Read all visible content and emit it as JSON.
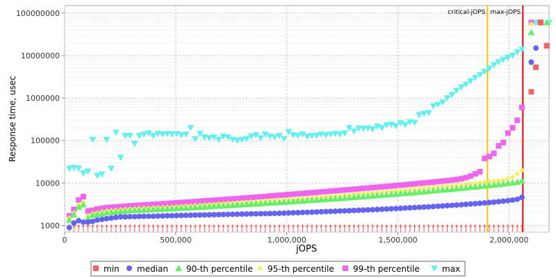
{
  "chart_data": {
    "type": "scatter",
    "title": "",
    "xlabel": "jOPS",
    "ylabel": "Response time, usec",
    "xlim": [
      0,
      2180000
    ],
    "ylim": [
      700,
      150000000
    ],
    "yscale": "log",
    "grid": true,
    "legend_position": "bottom",
    "x_ticks": [
      0,
      500000,
      1000000,
      1500000,
      2000000
    ],
    "x_tick_labels": [
      "0",
      "500,000",
      "1,000,000",
      "1,500,000",
      "2,000,000"
    ],
    "y_ticks": [
      1000,
      10000,
      100000,
      1000000,
      10000000,
      100000000
    ],
    "y_tick_labels": [
      "1000",
      "10000",
      "100000",
      "1000000",
      "10000000",
      "100000000"
    ],
    "x": [
      21000,
      42000,
      63000,
      84000,
      105000,
      126000,
      147000,
      168000,
      189000,
      210000,
      231000,
      252000,
      273000,
      294000,
      315000,
      336000,
      357000,
      378000,
      399000,
      420000,
      441000,
      462000,
      483000,
      504000,
      525000,
      546000,
      567000,
      588000,
      609000,
      630000,
      651000,
      672000,
      693000,
      714000,
      735000,
      756000,
      777000,
      798000,
      819000,
      840000,
      861000,
      882000,
      903000,
      924000,
      945000,
      966000,
      987000,
      1008000,
      1029000,
      1050000,
      1071000,
      1092000,
      1113000,
      1134000,
      1155000,
      1176000,
      1197000,
      1218000,
      1239000,
      1260000,
      1281000,
      1302000,
      1323000,
      1344000,
      1365000,
      1386000,
      1407000,
      1428000,
      1449000,
      1470000,
      1491000,
      1512000,
      1533000,
      1554000,
      1575000,
      1596000,
      1617000,
      1638000,
      1659000,
      1680000,
      1701000,
      1722000,
      1743000,
      1764000,
      1785000,
      1806000,
      1827000,
      1848000,
      1869000,
      1890000,
      1911000,
      1932000,
      1953000,
      1974000,
      1995000,
      2016000,
      2037000,
      2058000
    ],
    "min_level": 1000,
    "series": [
      {
        "name": "min",
        "color": "#f06464",
        "marker": "square",
        "points": [
          [
            2100000,
            1400000
          ],
          [
            2121000,
            5300000
          ],
          [
            2142000,
            60000000
          ],
          [
            2170000,
            17000000
          ]
        ]
      },
      {
        "name": "median",
        "color": "#6464f0",
        "marker": "circle",
        "values": [
          900,
          1150,
          1300,
          1200,
          1200,
          1250,
          1350,
          1400,
          1450,
          1500,
          1550,
          1600,
          1600,
          1620,
          1620,
          1640,
          1650,
          1650,
          1660,
          1670,
          1680,
          1700,
          1700,
          1720,
          1730,
          1740,
          1750,
          1760,
          1770,
          1780,
          1790,
          1800,
          1810,
          1820,
          1830,
          1840,
          1850,
          1860,
          1870,
          1880,
          1890,
          1900,
          1910,
          1920,
          1930,
          1940,
          1960,
          1980,
          2000,
          2010,
          2030,
          2050,
          2070,
          2090,
          2110,
          2130,
          2150,
          2170,
          2200,
          2220,
          2240,
          2260,
          2290,
          2310,
          2340,
          2360,
          2390,
          2420,
          2450,
          2480,
          2510,
          2540,
          2580,
          2610,
          2650,
          2680,
          2720,
          2760,
          2800,
          2850,
          2890,
          2940,
          2990,
          3040,
          3090,
          3150,
          3210,
          3270,
          3340,
          3410,
          3480,
          3560,
          3650,
          3750,
          3860,
          3980,
          4150,
          4600
        ],
        "extra_points": [
          [
            2100000,
            7000000
          ],
          [
            2121000,
            15000000
          ],
          [
            2142000,
            60000000
          ],
          [
            2170000,
            17000000
          ]
        ]
      },
      {
        "name": "90-th percentile",
        "color": "#64f064",
        "marker": "triangle",
        "values": [
          1350,
          1800,
          2700,
          3100,
          1500,
          1750,
          1850,
          1900,
          2000,
          2050,
          2100,
          2150,
          2200,
          2250,
          2280,
          2300,
          2330,
          2360,
          2390,
          2420,
          2450,
          2480,
          2510,
          2540,
          2570,
          2600,
          2640,
          2680,
          2720,
          2760,
          2800,
          2840,
          2880,
          2920,
          2960,
          3000,
          3050,
          3100,
          3150,
          3200,
          3250,
          3300,
          3350,
          3400,
          3450,
          3500,
          3560,
          3620,
          3680,
          3740,
          3800,
          3860,
          3930,
          4000,
          4070,
          4140,
          4210,
          4290,
          4370,
          4450,
          4530,
          4620,
          4710,
          4800,
          4890,
          4990,
          5090,
          5190,
          5300,
          5410,
          5520,
          5640,
          5760,
          5880,
          6010,
          6140,
          6280,
          6420,
          6570,
          6720,
          6880,
          7040,
          7210,
          7380,
          7560,
          7750,
          7940,
          8140,
          8350,
          8570,
          8800,
          9050,
          9300,
          9600,
          9900,
          10200,
          10600,
          11300
        ],
        "extra_points": [
          [
            2100000,
            35000000
          ],
          [
            2142000,
            60000000
          ],
          [
            2170000,
            60000000
          ]
        ]
      },
      {
        "name": "95-th percentile",
        "color": "#f0f064",
        "marker": "diamond",
        "values": [
          1500,
          2000,
          3000,
          3500,
          1700,
          1900,
          2000,
          2100,
          2200,
          2250,
          2300,
          2350,
          2400,
          2450,
          2500,
          2530,
          2560,
          2590,
          2620,
          2650,
          2680,
          2710,
          2750,
          2790,
          2830,
          2870,
          2910,
          2950,
          3000,
          3050,
          3100,
          3150,
          3200,
          3250,
          3300,
          3350,
          3410,
          3470,
          3530,
          3590,
          3650,
          3710,
          3770,
          3840,
          3910,
          3980,
          4050,
          4120,
          4190,
          4270,
          4350,
          4430,
          4510,
          4600,
          4690,
          4780,
          4870,
          4970,
          5070,
          5170,
          5280,
          5390,
          5500,
          5620,
          5740,
          5860,
          5990,
          6120,
          6250,
          6390,
          6530,
          6680,
          6830,
          6990,
          7150,
          7320,
          7490,
          7670,
          7860,
          8050,
          8250,
          8450,
          8660,
          8880,
          9110,
          9350,
          9600,
          9860,
          10130,
          10420,
          10720,
          11040,
          11400,
          11800,
          12600,
          13800,
          16500,
          20000
        ],
        "extra_points": [
          [
            2100000,
            55000000
          ],
          [
            2142000,
            60000000
          ],
          [
            2170000,
            60000000
          ]
        ]
      },
      {
        "name": "99-th percentile",
        "color": "#f064f0",
        "marker": "square",
        "values": [
          1700,
          2400,
          4000,
          4800,
          2200,
          2300,
          2450,
          2550,
          2650,
          2700,
          2750,
          2800,
          2850,
          2900,
          2950,
          3000,
          3050,
          3100,
          3150,
          3200,
          3250,
          3300,
          3360,
          3420,
          3480,
          3540,
          3600,
          3660,
          3730,
          3800,
          3870,
          3940,
          4010,
          4080,
          4160,
          4240,
          4320,
          4400,
          4480,
          4570,
          4660,
          4750,
          4840,
          4940,
          5040,
          5140,
          5240,
          5350,
          5460,
          5570,
          5680,
          5800,
          5920,
          6040,
          6170,
          6300,
          6430,
          6570,
          6710,
          6850,
          7000,
          7150,
          7310,
          7470,
          7630,
          7800,
          7980,
          8160,
          8340,
          8530,
          8730,
          8930,
          9140,
          9350,
          9570,
          9800,
          10040,
          10280,
          10530,
          10800,
          11080,
          11380,
          11700,
          12100,
          12600,
          13400,
          14600,
          16500,
          18500,
          38000,
          42000,
          50000,
          75000,
          90000,
          150000,
          200000,
          300000,
          600000
        ],
        "extra_points": [
          [
            2100000,
            60000000
          ],
          [
            2142000,
            60000000
          ]
        ]
      },
      {
        "name": "max",
        "color": "#64f0f0",
        "marker": "triangle-down",
        "values": [
          22000,
          23000,
          22000,
          17000,
          19000,
          105000,
          15000,
          16000,
          105000,
          22000,
          155000,
          40000,
          130000,
          130000,
          85000,
          130000,
          140000,
          150000,
          130000,
          145000,
          140000,
          145000,
          140000,
          145000,
          135000,
          140000,
          200000,
          110000,
          145000,
          120000,
          115000,
          120000,
          105000,
          125000,
          120000,
          105000,
          100000,
          105000,
          110000,
          125000,
          135000,
          115000,
          140000,
          125000,
          120000,
          130000,
          110000,
          160000,
          135000,
          130000,
          140000,
          125000,
          130000,
          130000,
          140000,
          135000,
          140000,
          145000,
          140000,
          150000,
          200000,
          165000,
          195000,
          190000,
          195000,
          185000,
          215000,
          200000,
          230000,
          240000,
          220000,
          260000,
          235000,
          275000,
          265000,
          400000,
          430000,
          450000,
          650000,
          700000,
          800000,
          1000000,
          1200000,
          1500000,
          1800000,
          2100000,
          2500000,
          3000000,
          3500000,
          4200000,
          5000000,
          6000000,
          7000000,
          8000000,
          9000000,
          10000000,
          12000000,
          14000000
        ],
        "extra_points": [
          [
            2121000,
            60000000
          ],
          [
            2142000,
            60000000
          ],
          [
            2180000,
            60000000
          ]
        ]
      }
    ],
    "markers": [
      {
        "label": "critical-jOPS",
        "x": 1903000,
        "color": "#ffc000"
      },
      {
        "label": "max-jOPS",
        "x": 2062000,
        "color": "#ff0000"
      }
    ]
  }
}
